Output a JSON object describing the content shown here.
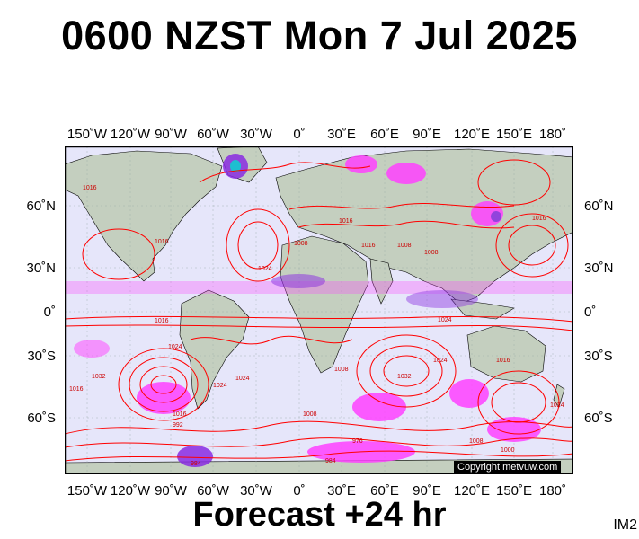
{
  "title": "0600 NZST Mon 7 Jul 2025",
  "footer": "Forecast +24 hr",
  "image_tag": "IM2",
  "copyright": "Copyright metvuw.com",
  "lon_labels": [
    "150˚W",
    "120˚W",
    "90˚W",
    "60˚W",
    "30˚W",
    "0˚",
    "30˚E",
    "60˚E",
    "90˚E",
    "120˚E",
    "150˚E",
    "180˚"
  ],
  "lat_labels": [
    "60˚N",
    "30˚N",
    "0˚",
    "30˚S",
    "60˚S"
  ],
  "isobar_labels": [
    "1016",
    "1016",
    "1008",
    "1016",
    "1016",
    "1024",
    "1008",
    "1016",
    "1008",
    "1016",
    "1024",
    "1032",
    "1024",
    "1016",
    "1016",
    "1008",
    "992",
    "1024",
    "1032",
    "1024",
    "984",
    "976",
    "1008",
    "1024",
    "1000",
    "1016",
    "1024",
    "984",
    "1008"
  ],
  "colors": {
    "ocean": "#e6e6fa",
    "land": "#c4cfbf",
    "isobar": "#ff0000",
    "precip_light": "#ff40ff",
    "precip_heavy": "#8a2be2",
    "background": "#ffffff"
  }
}
